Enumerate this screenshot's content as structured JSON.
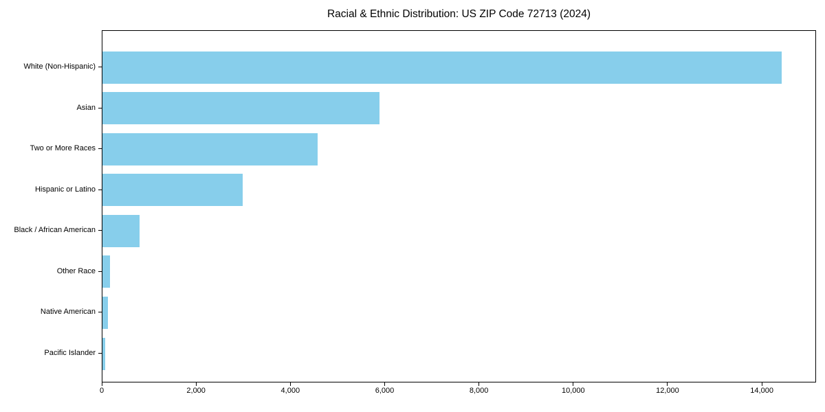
{
  "title": "Racial & Ethnic Distribution: US ZIP Code 72713 (2024)",
  "chart_data": {
    "type": "bar",
    "orientation": "horizontal",
    "title": "Racial & Ethnic Distribution: US ZIP Code 72713 (2024)",
    "xlabel": "",
    "ylabel": "",
    "categories": [
      "White (Non-Hispanic)",
      "Asian",
      "Two or More Races",
      "Hispanic or Latino",
      "Black / African American",
      "Other Race",
      "Native American",
      "Pacific Islander"
    ],
    "values": [
      14400,
      5880,
      4570,
      2970,
      790,
      160,
      120,
      60
    ],
    "xlim": [
      0,
      15150
    ],
    "x_ticks": [
      0,
      2000,
      4000,
      6000,
      8000,
      10000,
      12000,
      14000
    ],
    "x_tick_labels": [
      "0",
      "2,000",
      "4,000",
      "6,000",
      "8,000",
      "10,000",
      "12,000",
      "14,000"
    ],
    "bar_color": "#87CEEB",
    "frame_color": "#000000",
    "text_color": "#000000",
    "grid": false,
    "legend": false
  }
}
